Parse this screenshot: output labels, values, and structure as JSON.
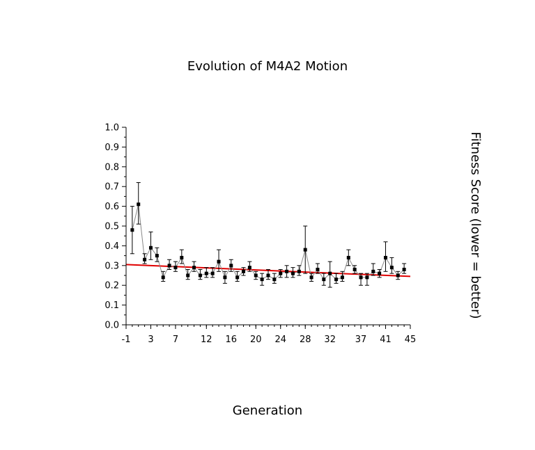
{
  "chart_data": {
    "type": "line",
    "title": "Evolution of M4A2 Motion",
    "xlabel": "Generation",
    "ylabel": "Fitness Score (lower = better)",
    "xlim": [
      -1,
      45
    ],
    "ylim": [
      0.0,
      1.0
    ],
    "x_ticks": [
      "-1",
      "3",
      "7",
      "12",
      "16",
      "20",
      "24",
      "28",
      "32",
      "37",
      "41",
      "45"
    ],
    "y_ticks": [
      "0.0",
      "0.1",
      "0.2",
      "0.3",
      "0.4",
      "0.5",
      "0.6",
      "0.7",
      "0.8",
      "0.9",
      "1.0"
    ],
    "grid": false,
    "series": [
      {
        "x": [
          0,
          1,
          2,
          3,
          4,
          5,
          6,
          7,
          8,
          9,
          10,
          11,
          12,
          13,
          14,
          15,
          16,
          17,
          18,
          19,
          20,
          21,
          22,
          23,
          24,
          25,
          26,
          27,
          28,
          29,
          30,
          31,
          32,
          33,
          34,
          35,
          36,
          37,
          38,
          39,
          40,
          41,
          42,
          43,
          44
        ],
        "y": [
          0.48,
          0.61,
          0.33,
          0.39,
          0.35,
          0.24,
          0.3,
          0.29,
          0.34,
          0.25,
          0.29,
          0.25,
          0.26,
          0.26,
          0.32,
          0.24,
          0.3,
          0.24,
          0.27,
          0.29,
          0.25,
          0.23,
          0.25,
          0.23,
          0.26,
          0.27,
          0.26,
          0.27,
          0.38,
          0.24,
          0.28,
          0.23,
          0.26,
          0.23,
          0.24,
          0.34,
          0.28,
          0.24,
          0.24,
          0.27,
          0.26,
          0.34,
          0.29,
          0.25,
          0.28
        ],
        "lower": [
          0.36,
          0.51,
          0.31,
          0.33,
          0.32,
          0.22,
          0.28,
          0.27,
          0.31,
          0.23,
          0.27,
          0.23,
          0.24,
          0.24,
          0.27,
          0.21,
          0.27,
          0.22,
          0.25,
          0.27,
          0.23,
          0.2,
          0.23,
          0.21,
          0.24,
          0.24,
          0.24,
          0.25,
          0.26,
          0.22,
          0.26,
          0.2,
          0.19,
          0.21,
          0.22,
          0.3,
          0.26,
          0.2,
          0.2,
          0.25,
          0.24,
          0.27,
          0.26,
          0.23,
          0.26
        ],
        "upper": [
          0.6,
          0.72,
          0.36,
          0.47,
          0.39,
          0.27,
          0.33,
          0.32,
          0.38,
          0.28,
          0.32,
          0.28,
          0.29,
          0.29,
          0.38,
          0.27,
          0.33,
          0.27,
          0.29,
          0.32,
          0.27,
          0.26,
          0.28,
          0.26,
          0.28,
          0.3,
          0.29,
          0.3,
          0.5,
          0.26,
          0.31,
          0.26,
          0.32,
          0.26,
          0.27,
          0.38,
          0.3,
          0.26,
          0.26,
          0.31,
          0.28,
          0.42,
          0.34,
          0.27,
          0.31
        ]
      }
    ],
    "trendline": {
      "x": [
        -1,
        45
      ],
      "y": [
        0.305,
        0.245
      ]
    },
    "colors": {
      "series_line": "#888888",
      "marker": "#000000",
      "trendline": "#e00000",
      "axis": "#000000"
    }
  }
}
